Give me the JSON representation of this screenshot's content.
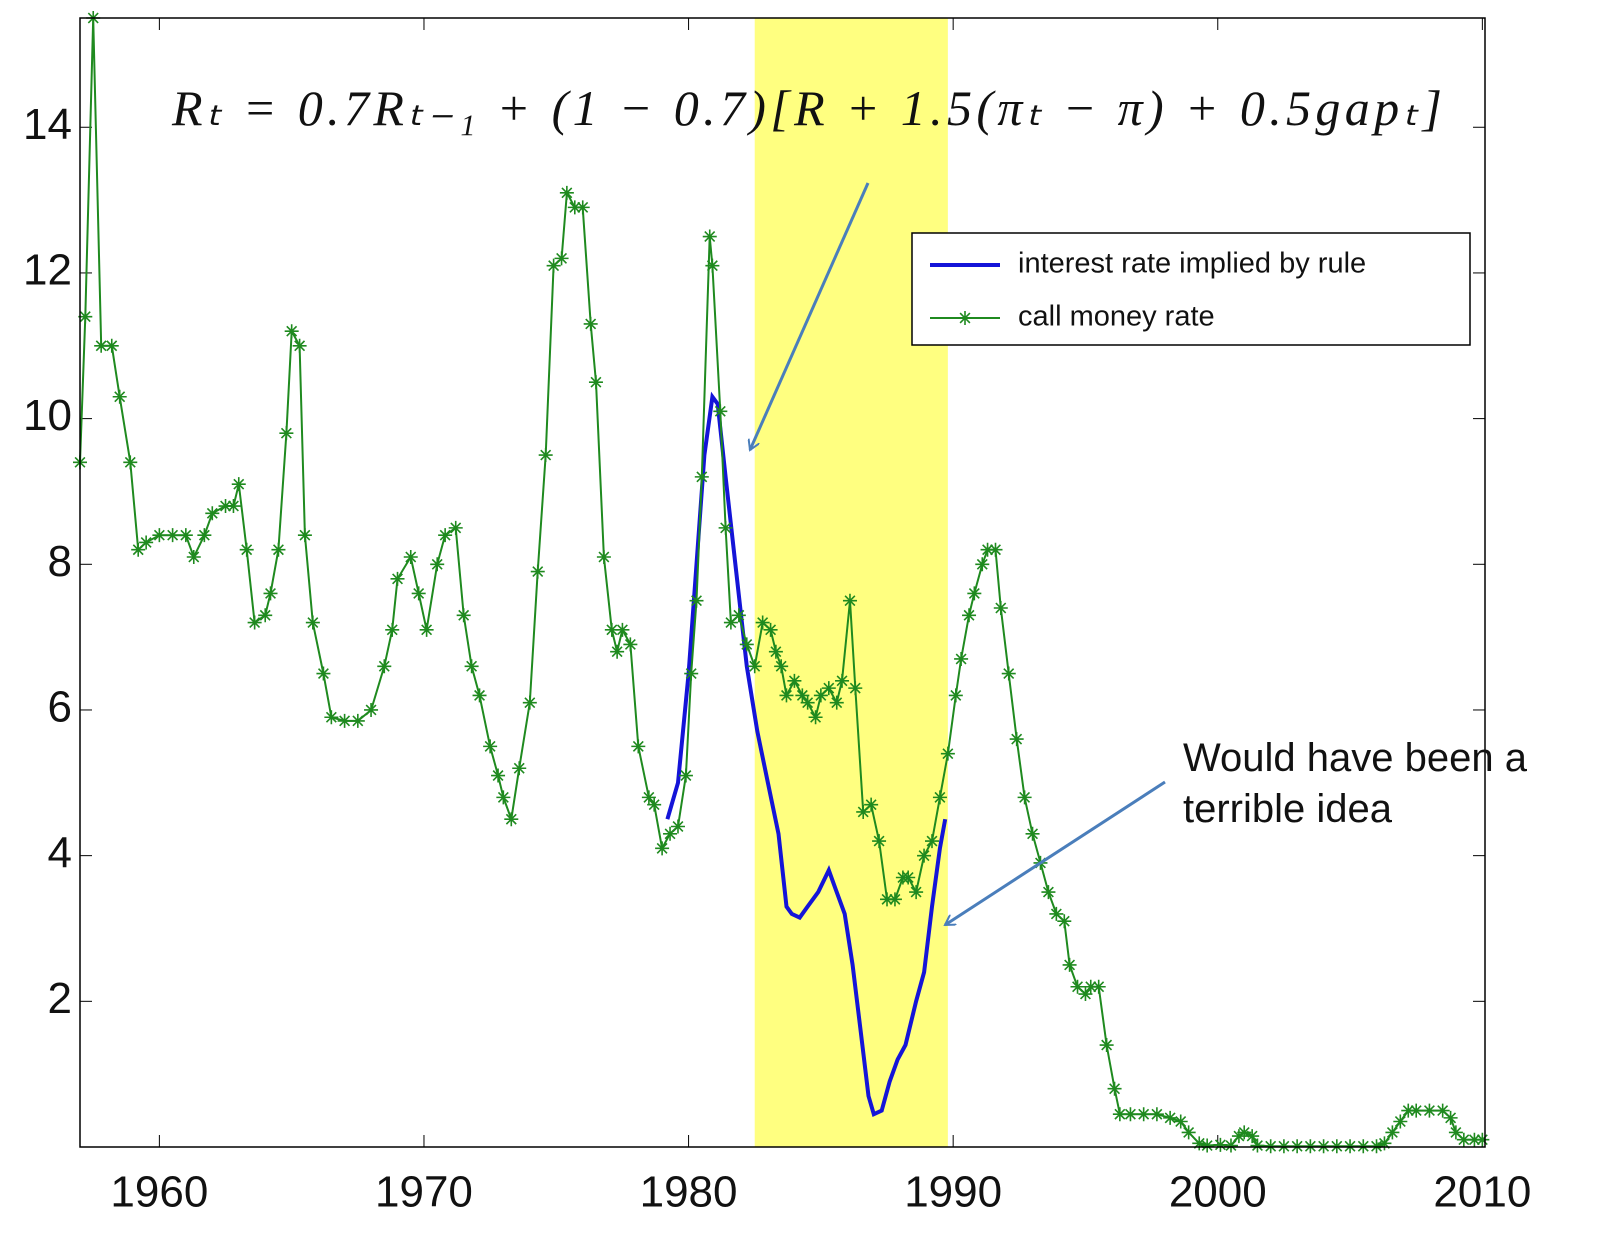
{
  "chart_data": {
    "type": "line",
    "annotations": {
      "formula": "Rₜ = 0.7Rₜ₋₁ + (1 − 0.7)[R + 1.5(πₜ − π) + 0.5gapₜ]",
      "note": [
        "Would have been a",
        "terrible idea"
      ]
    },
    "xlim": [
      1957,
      2010.1
    ],
    "ylim": [
      0,
      15.5
    ],
    "xticks": [
      1960,
      1970,
      1980,
      1990,
      2000,
      2010
    ],
    "yticks": [
      2,
      4,
      6,
      8,
      10,
      12,
      14
    ],
    "shade": {
      "x": [
        1982.5,
        1989.8
      ],
      "color": "#ffff80"
    },
    "legend": "upper right",
    "series": [
      {
        "name": "interest rate implied by rule",
        "color": "#1414d8",
        "marker": "none",
        "x": [
          1979.2,
          1979.6,
          1980.0,
          1980.3,
          1980.6,
          1980.9,
          1981.1,
          1981.4,
          1981.8,
          1982.2,
          1982.6,
          1983.0,
          1983.4,
          1983.7,
          1983.9,
          1984.2,
          1984.5,
          1984.9,
          1985.3,
          1985.6,
          1985.9,
          1986.2,
          1986.5,
          1986.8,
          1987.0,
          1987.3,
          1987.6,
          1987.9,
          1988.2,
          1988.6,
          1988.9,
          1989.2,
          1989.5,
          1989.7
        ],
        "values": [
          4.5,
          5.0,
          6.5,
          8.0,
          9.5,
          10.3,
          10.2,
          9.2,
          7.9,
          6.6,
          5.7,
          5.0,
          4.3,
          3.3,
          3.2,
          3.15,
          3.3,
          3.5,
          3.8,
          3.5,
          3.2,
          2.5,
          1.6,
          0.7,
          0.45,
          0.5,
          0.9,
          1.2,
          1.4,
          2.0,
          2.4,
          3.3,
          4.1,
          4.5
        ]
      },
      {
        "name": "call money rate",
        "color": "#1f8a1f",
        "marker": "star",
        "x": [
          1957.0,
          1957.2,
          1957.5,
          1957.8,
          1958.2,
          1958.5,
          1958.9,
          1959.2,
          1959.5,
          1960.0,
          1960.5,
          1961.0,
          1961.3,
          1961.7,
          1962.0,
          1962.5,
          1962.8,
          1963.0,
          1963.3,
          1963.6,
          1964.0,
          1964.2,
          1964.5,
          1964.8,
          1965.0,
          1965.3,
          1965.5,
          1965.8,
          1966.2,
          1966.5,
          1967.0,
          1967.5,
          1968.0,
          1968.5,
          1968.8,
          1969.0,
          1969.5,
          1969.8,
          1970.1,
          1970.5,
          1970.8,
          1971.2,
          1971.5,
          1971.8,
          1972.1,
          1972.5,
          1972.8,
          1973.0,
          1973.3,
          1973.6,
          1974.0,
          1974.3,
          1974.6,
          1974.9,
          1975.2,
          1975.4,
          1975.7,
          1976.0,
          1976.3,
          1976.5,
          1976.8,
          1977.1,
          1977.3,
          1977.5,
          1977.8,
          1978.1,
          1978.5,
          1978.7,
          1979.0,
          1979.3,
          1979.6,
          1979.9,
          1980.1,
          1980.3,
          1980.5,
          1980.8,
          1980.9,
          1981.2,
          1981.4,
          1981.6,
          1981.9,
          1982.2,
          1982.5,
          1982.8,
          1983.1,
          1983.3,
          1983.5,
          1983.7,
          1984.0,
          1984.3,
          1984.5,
          1984.8,
          1985.0,
          1985.3,
          1985.6,
          1985.8,
          1986.1,
          1986.3,
          1986.6,
          1986.9,
          1987.2,
          1987.5,
          1987.8,
          1988.1,
          1988.3,
          1988.6,
          1988.9,
          1989.2,
          1989.5,
          1989.8,
          1990.1,
          1990.3,
          1990.6,
          1990.8,
          1991.1,
          1991.3,
          1991.6,
          1991.8,
          1992.1,
          1992.4,
          1992.7,
          1993.0,
          1993.3,
          1993.6,
          1993.9,
          1994.2,
          1994.4,
          1994.7,
          1995.0,
          1995.2,
          1995.5,
          1995.8,
          1996.1,
          1996.3,
          1996.7,
          1997.2,
          1997.7,
          1998.2,
          1998.6,
          1998.9,
          1999.3,
          1999.6,
          2000.1,
          2000.5,
          2000.8,
          2001.0,
          2001.3,
          2001.5,
          2002.0,
          2002.5,
          2003.0,
          2003.5,
          2004.0,
          2004.5,
          2005.0,
          2005.5,
          2006.0,
          2006.3,
          2006.6,
          2006.9,
          2007.2,
          2007.5,
          2008.0,
          2008.5,
          2008.8,
          2009.0,
          2009.3,
          2009.7,
          2010.0
        ],
        "values": [
          9.4,
          11.4,
          15.5,
          11.0,
          11.0,
          10.3,
          9.4,
          8.2,
          8.3,
          8.4,
          8.4,
          8.4,
          8.1,
          8.4,
          8.7,
          8.8,
          8.8,
          9.1,
          8.2,
          7.2,
          7.3,
          7.6,
          8.2,
          9.8,
          11.2,
          11.0,
          8.4,
          7.2,
          6.5,
          5.9,
          5.85,
          5.85,
          6.0,
          6.6,
          7.1,
          7.8,
          8.1,
          7.6,
          7.1,
          8.0,
          8.4,
          8.5,
          7.3,
          6.6,
          6.2,
          5.5,
          5.1,
          4.8,
          4.5,
          5.2,
          6.1,
          7.9,
          9.5,
          12.1,
          12.2,
          13.1,
          12.9,
          12.9,
          11.3,
          10.5,
          8.1,
          7.1,
          6.8,
          7.1,
          6.9,
          5.5,
          4.8,
          4.7,
          4.1,
          4.3,
          4.4,
          5.1,
          6.5,
          7.5,
          9.2,
          12.5,
          12.1,
          10.1,
          8.5,
          7.2,
          7.3,
          6.9,
          6.6,
          7.2,
          7.1,
          6.8,
          6.6,
          6.2,
          6.4,
          6.2,
          6.1,
          5.9,
          6.2,
          6.3,
          6.1,
          6.4,
          7.5,
          6.3,
          4.6,
          4.7,
          4.2,
          3.4,
          3.4,
          3.7,
          3.7,
          3.5,
          4.0,
          4.2,
          4.8,
          5.4,
          6.2,
          6.7,
          7.3,
          7.6,
          8.0,
          8.2,
          8.2,
          7.4,
          6.5,
          5.6,
          4.8,
          4.3,
          3.9,
          3.5,
          3.2,
          3.1,
          2.5,
          2.2,
          2.1,
          2.2,
          2.2,
          1.4,
          0.8,
          0.45,
          0.45,
          0.45,
          0.45,
          0.4,
          0.35,
          0.2,
          0.05,
          0.02,
          0.03,
          0.02,
          0.15,
          0.2,
          0.15,
          0.02,
          0.01,
          0.01,
          0.01,
          0.01,
          0.01,
          0.01,
          0.01,
          0.01,
          0.01,
          0.05,
          0.2,
          0.35,
          0.5,
          0.5,
          0.5,
          0.5,
          0.4,
          0.2,
          0.1,
          0.1,
          0.1
        ]
      }
    ]
  }
}
